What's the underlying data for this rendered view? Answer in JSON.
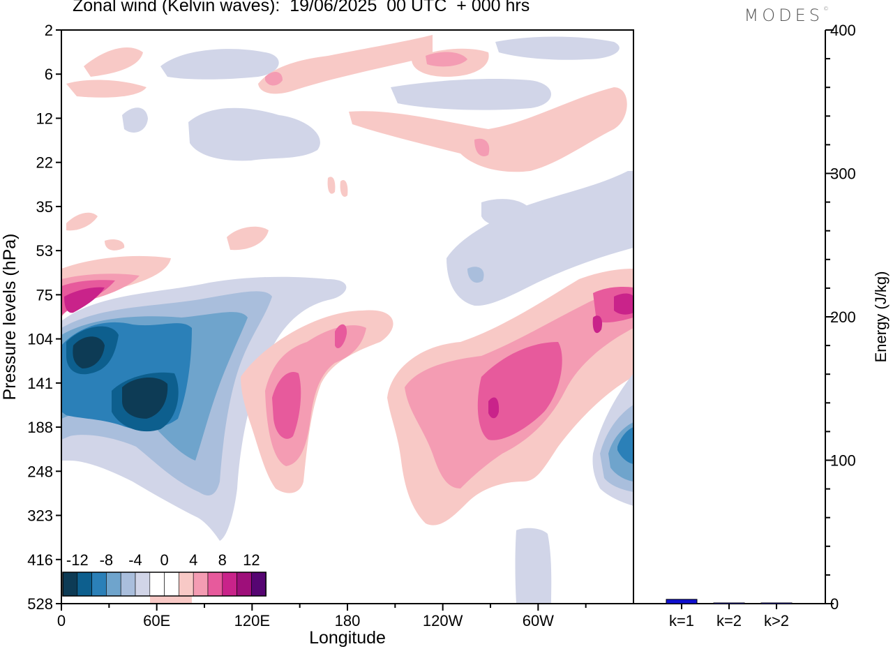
{
  "header": {
    "title": "Zonal wind (Kelvin waves):  19/06/2025  00 UTC  + 000 hrs",
    "brand": "MODES",
    "brand_mark": "©"
  },
  "chart_data": [
    {
      "type": "heatmap",
      "title": "Zonal wind (Kelvin waves):  19/06/2025  00 UTC  + 000 hrs",
      "xlabel": "Longitude",
      "ylabel": "Pressure levels (hPa)",
      "x_ticks": [
        "0",
        "60E",
        "120E",
        "180",
        "120W",
        "60W"
      ],
      "x_tick_degrees": [
        0,
        60,
        120,
        180,
        240,
        300
      ],
      "xlim": [
        0,
        360
      ],
      "y_ticks": [
        "2",
        "6",
        "12",
        "22",
        "35",
        "53",
        "75",
        "104",
        "141",
        "188",
        "248",
        "323",
        "416",
        "528"
      ],
      "y_scale": "model levels (top 2 hPa, bottom 528 hPa)",
      "colorbar": {
        "labels": [
          "-12",
          "-8",
          "-4",
          "0",
          "4",
          "8",
          "12"
        ],
        "levels": [
          -14,
          -12,
          -10,
          -8,
          -6,
          -4,
          -2,
          0,
          2,
          4,
          6,
          8,
          10,
          12,
          14
        ],
        "colors": [
          "#0d3b55",
          "#0d5f8e",
          "#2b80b8",
          "#6fa4cc",
          "#a9bedc",
          "#d1d5e8",
          "#ffffff",
          "#ffffff",
          "#f8c9c6",
          "#f49cb3",
          "#e75a9c",
          "#c9238a",
          "#9e0f7a",
          "#560572"
        ]
      },
      "features": [
        {
          "description": "strong easterly core",
          "lon": 45,
          "level": "141",
          "value": -12
        },
        {
          "description": "easterly core",
          "lon": 15,
          "level": "104",
          "value": -10
        },
        {
          "description": "easterly anomaly",
          "lon": 335,
          "level": "188",
          "value": -10
        },
        {
          "description": "westerly anomaly",
          "lon": 10,
          "level": "75",
          "value": 10
        },
        {
          "description": "westerly anomaly",
          "lon": 150,
          "level": "141",
          "value": 8
        },
        {
          "description": "westerly anomaly",
          "lon": 270,
          "level": "141",
          "value": 10
        },
        {
          "description": "westerly anomaly",
          "lon": 355,
          "level": "75",
          "value": 8
        }
      ]
    },
    {
      "type": "bar",
      "ylabel": "Energy (J/kg)",
      "ylim": [
        0,
        400
      ],
      "y_ticks": [
        "0",
        "100",
        "200",
        "300",
        "400"
      ],
      "categories": [
        "k=1",
        "k=2",
        "k>2"
      ],
      "values": [
        3,
        0.5,
        0.5
      ],
      "bar_color": "#1010d0"
    }
  ]
}
